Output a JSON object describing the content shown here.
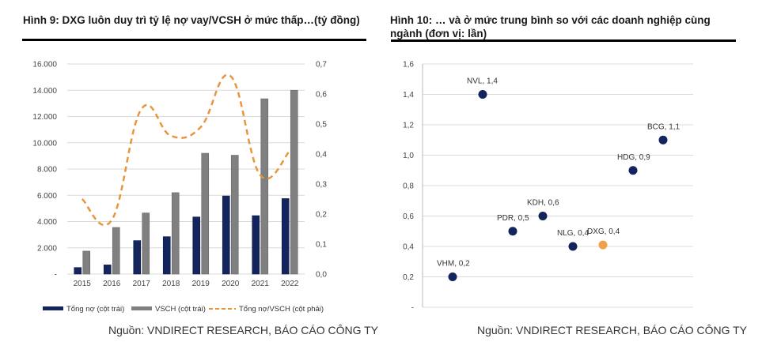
{
  "left": {
    "title": "Hình 9: DXG luôn duy trì tỷ lệ nợ vay/VCSH ở mức thấp…(tỷ đồng)",
    "source": "Nguồn: VNDIRECT RESEARCH, BÁO CÁO CÔNG TY"
  },
  "right": {
    "title_line1": "Hình 10: … và ở mức trung bình so với các doanh nghiệp cùng",
    "title_line2": "ngành (đơn vị: lần)",
    "source": "Nguồn: VNDIRECT RESEARCH, BÁO CÁO CÔNG TY"
  },
  "chart_data": [
    {
      "type": "bar",
      "title": "Hình 9: DXG luôn duy trì tỷ lệ nợ vay/VCSH ở mức thấp…(tỷ đồng)",
      "categories": [
        "2015",
        "2016",
        "2017",
        "2018",
        "2019",
        "2020",
        "2021",
        "2022"
      ],
      "series": [
        {
          "name": "Tổng nợ (cột trái)",
          "type": "bar",
          "axis": "left",
          "color": "#14245c",
          "values": [
            500,
            700,
            2550,
            2850,
            4350,
            5950,
            4450,
            5750
          ]
        },
        {
          "name": "VSCH (cột trái)",
          "type": "bar",
          "axis": "left",
          "color": "#808080",
          "values": [
            1750,
            3550,
            4650,
            6200,
            9200,
            9050,
            13350,
            14000
          ]
        },
        {
          "name": "Tổng nợ/VSCH (cột phải)",
          "type": "line",
          "axis": "right",
          "color": "#e8963c",
          "dashed": true,
          "values": [
            0.25,
            0.18,
            0.55,
            0.46,
            0.49,
            0.66,
            0.33,
            0.41
          ]
        }
      ],
      "yleft": {
        "range": [
          0,
          16000
        ],
        "ticks": [
          "-",
          "2.000",
          "4.000",
          "6.000",
          "8.000",
          "10.000",
          "12.000",
          "14.000",
          "16.000"
        ]
      },
      "yright": {
        "range": [
          0,
          0.7
        ],
        "ticks": [
          "0,0",
          "0,1",
          "0,2",
          "0,3",
          "0,4",
          "0,5",
          "0,6",
          "0,7"
        ]
      },
      "legend_position": "bottom",
      "grid": true
    },
    {
      "type": "scatter",
      "title": "Hình 10: … và ở mức trung bình so với các doanh nghiệp cùng ngành (đơn vị: lần)",
      "points": [
        {
          "label": "VHM,  0,2",
          "name": "VHM",
          "x": 1,
          "y": 0.2,
          "color": "#14245c"
        },
        {
          "label": "NVL,  1,4",
          "name": "NVL",
          "x": 2,
          "y": 1.4,
          "color": "#14245c"
        },
        {
          "label": "PDR,  0,5",
          "name": "PDR",
          "x": 3,
          "y": 0.5,
          "color": "#14245c"
        },
        {
          "label": "KDH,  0,6",
          "name": "KDH",
          "x": 4,
          "y": 0.6,
          "color": "#14245c"
        },
        {
          "label": "NLG,  0,4",
          "name": "NLG",
          "x": 5,
          "y": 0.4,
          "color": "#14245c"
        },
        {
          "label": "DXG,  0,4",
          "name": "DXG",
          "x": 6,
          "y": 0.41,
          "color": "#f0a04b"
        },
        {
          "label": "HDG,  0,9",
          "name": "HDG",
          "x": 7,
          "y": 0.9,
          "color": "#14245c"
        },
        {
          "label": "BCG,  1,1",
          "name": "BCG",
          "x": 8,
          "y": 1.1,
          "color": "#14245c"
        }
      ],
      "xlim": [
        0,
        9
      ],
      "ylim": [
        0,
        1.6
      ],
      "yticks": [
        "-",
        "0,2",
        "0,4",
        "0,6",
        "0,8",
        "1,0",
        "1,2",
        "1,4",
        "1,6"
      ],
      "grid": true
    }
  ]
}
